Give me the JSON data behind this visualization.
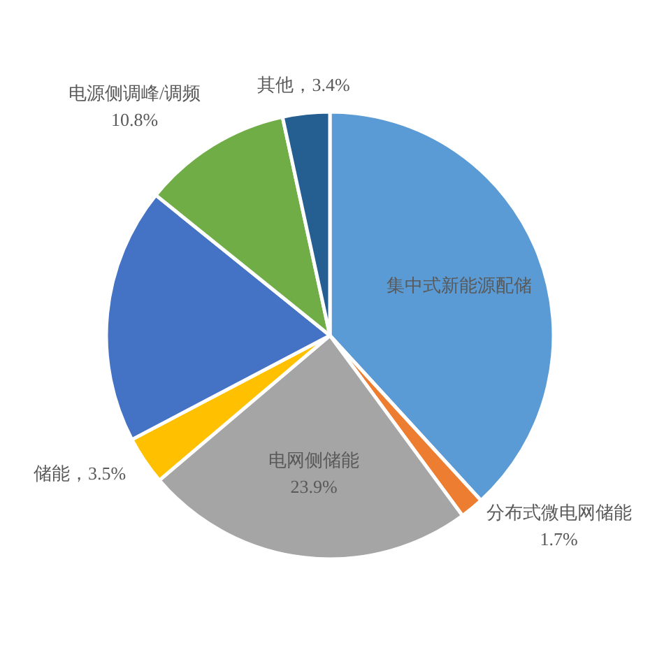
{
  "chart_data": {
    "type": "pie",
    "categories": [
      "集中式新能源配储",
      "分布式微电网储能",
      "电网侧储能",
      "储能",
      null,
      "电源侧调峰/调频",
      "其他"
    ],
    "values": [
      38.2,
      1.7,
      23.9,
      3.5,
      18.5,
      10.8,
      3.4
    ],
    "colors": [
      "#5b9bd5",
      "#ed7d31",
      "#a5a5a5",
      "#ffc000",
      "#4472c4",
      "#70ad47",
      "#255e91"
    ],
    "value_labels": [
      null,
      "1.7%",
      "23.9%",
      "3.5%",
      null,
      "10.8%",
      "3.4%"
    ]
  }
}
